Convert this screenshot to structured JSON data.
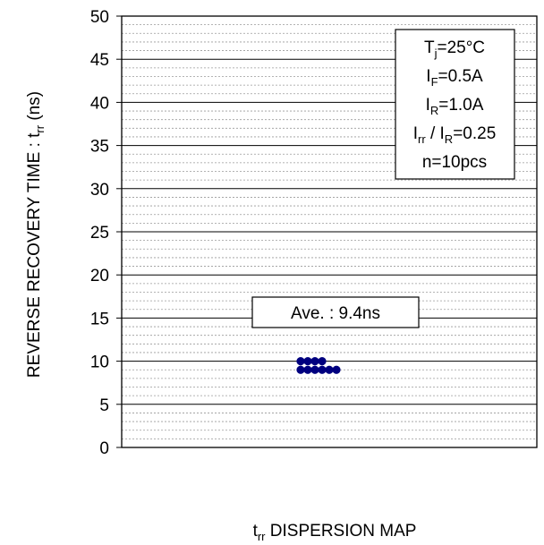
{
  "chart_data": {
    "type": "scatter",
    "title": "",
    "ylabel": "REVERSE RECOVERY TIME : t",
    "ylabel_sub": "rr",
    "ylabel_suffix": " (ns)",
    "xlabel": "t",
    "xlabel_sub": "rr",
    "xlabel_suffix": " DISPERSION MAP",
    "ylim": [
      0,
      50
    ],
    "major_ticks": [
      0,
      5,
      10,
      15,
      20,
      25,
      30,
      35,
      40,
      45,
      50
    ],
    "minor_grid_step": 1,
    "grid": true,
    "series": [
      {
        "values": [
          10,
          10,
          10,
          10,
          9,
          9,
          9,
          9,
          9,
          9
        ],
        "color": "#00007f"
      }
    ],
    "average_annotation": "Ave. : 9.4ns",
    "conditions": [
      {
        "main": "T",
        "sub": "j",
        "rest": "=25°C"
      },
      {
        "main": "I",
        "sub": "F",
        "rest": "=0.5A"
      },
      {
        "main": "I",
        "sub": "R",
        "rest": "=1.0A"
      },
      {
        "main": "I",
        "sub": "rr",
        "rest": " / I",
        "sub2": "R",
        "rest2": "=0.25"
      },
      {
        "main": "",
        "sub": "",
        "rest": "n=10pcs"
      }
    ]
  }
}
